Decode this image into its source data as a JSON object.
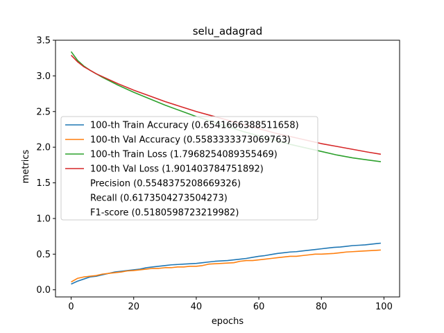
{
  "chart_data": {
    "type": "line",
    "title": "selu_adagrad",
    "xlabel": "epochs",
    "ylabel": "metrics",
    "xlim": [
      -5,
      105
    ],
    "ylim": [
      -0.1,
      3.5
    ],
    "xticks": [
      0,
      20,
      40,
      60,
      80,
      100
    ],
    "xtick_labels": [
      "0",
      "20",
      "40",
      "60",
      "80",
      "100"
    ],
    "yticks": [
      0.0,
      0.5,
      1.0,
      1.5,
      2.0,
      2.5,
      3.0,
      3.5
    ],
    "ytick_labels": [
      "0.0",
      "0.5",
      "1.0",
      "1.5",
      "2.0",
      "2.5",
      "3.0",
      "3.5"
    ],
    "grid": false,
    "legend_position": "center-left",
    "series": [
      {
        "name": "100-th Train Accuracy (0.6541666388511658)",
        "color": "#1f77b4",
        "x": [
          0,
          2,
          4,
          6,
          8,
          10,
          12,
          14,
          16,
          18,
          20,
          22,
          24,
          26,
          28,
          30,
          32,
          34,
          36,
          38,
          40,
          42,
          44,
          46,
          48,
          50,
          52,
          54,
          56,
          58,
          60,
          62,
          64,
          66,
          68,
          70,
          72,
          74,
          76,
          78,
          80,
          82,
          84,
          86,
          88,
          90,
          92,
          94,
          96,
          98,
          99
        ],
        "values": [
          0.08,
          0.12,
          0.15,
          0.18,
          0.19,
          0.21,
          0.23,
          0.25,
          0.26,
          0.27,
          0.28,
          0.29,
          0.31,
          0.32,
          0.33,
          0.34,
          0.35,
          0.355,
          0.36,
          0.365,
          0.37,
          0.38,
          0.39,
          0.4,
          0.405,
          0.41,
          0.42,
          0.43,
          0.44,
          0.455,
          0.47,
          0.48,
          0.495,
          0.51,
          0.52,
          0.53,
          0.535,
          0.545,
          0.555,
          0.565,
          0.575,
          0.585,
          0.595,
          0.6,
          0.61,
          0.62,
          0.625,
          0.63,
          0.64,
          0.65,
          0.654
        ]
      },
      {
        "name": "100-th Val Accuracy (0.5583333373069763)",
        "color": "#ff7f0e",
        "x": [
          0,
          2,
          4,
          6,
          8,
          10,
          12,
          14,
          16,
          18,
          20,
          22,
          24,
          26,
          28,
          30,
          32,
          34,
          36,
          38,
          40,
          42,
          44,
          46,
          48,
          50,
          52,
          54,
          56,
          58,
          60,
          62,
          64,
          66,
          68,
          70,
          72,
          74,
          76,
          78,
          80,
          82,
          84,
          86,
          88,
          90,
          92,
          94,
          96,
          98,
          99
        ],
        "values": [
          0.11,
          0.16,
          0.18,
          0.19,
          0.2,
          0.22,
          0.23,
          0.24,
          0.25,
          0.265,
          0.27,
          0.28,
          0.29,
          0.3,
          0.3,
          0.31,
          0.31,
          0.32,
          0.32,
          0.33,
          0.33,
          0.34,
          0.36,
          0.365,
          0.37,
          0.375,
          0.38,
          0.4,
          0.41,
          0.41,
          0.42,
          0.43,
          0.44,
          0.45,
          0.46,
          0.47,
          0.47,
          0.48,
          0.49,
          0.5,
          0.5,
          0.505,
          0.51,
          0.52,
          0.53,
          0.535,
          0.54,
          0.545,
          0.55,
          0.555,
          0.558
        ]
      },
      {
        "name": "100-th Train Loss (1.7968254089355469)",
        "color": "#2ca02c",
        "x": [
          0,
          2,
          4,
          6,
          8,
          10,
          15,
          20,
          25,
          30,
          35,
          40,
          45,
          50,
          55,
          60,
          65,
          70,
          75,
          80,
          85,
          90,
          95,
          99
        ],
        "values": [
          3.34,
          3.22,
          3.14,
          3.08,
          3.03,
          2.98,
          2.87,
          2.77,
          2.68,
          2.59,
          2.51,
          2.43,
          2.36,
          2.29,
          2.22,
          2.16,
          2.1,
          2.04,
          1.99,
          1.94,
          1.89,
          1.85,
          1.82,
          1.797
        ]
      },
      {
        "name": "100-th Val Loss (1.901403784751892)",
        "color": "#d62728",
        "x": [
          0,
          2,
          4,
          6,
          8,
          10,
          15,
          20,
          25,
          30,
          35,
          40,
          45,
          50,
          55,
          60,
          65,
          70,
          75,
          80,
          85,
          90,
          95,
          99
        ],
        "values": [
          3.29,
          3.2,
          3.13,
          3.08,
          3.03,
          2.99,
          2.89,
          2.8,
          2.72,
          2.64,
          2.57,
          2.5,
          2.44,
          2.38,
          2.32,
          2.26,
          2.2,
          2.15,
          2.1,
          2.05,
          2.01,
          1.97,
          1.93,
          1.901
        ]
      }
    ],
    "legend_extra": [
      "Precision (0.5548375208669326)",
      "Recall (0.6173504273504273)",
      "F1-score (0.5180598723219982)"
    ]
  }
}
